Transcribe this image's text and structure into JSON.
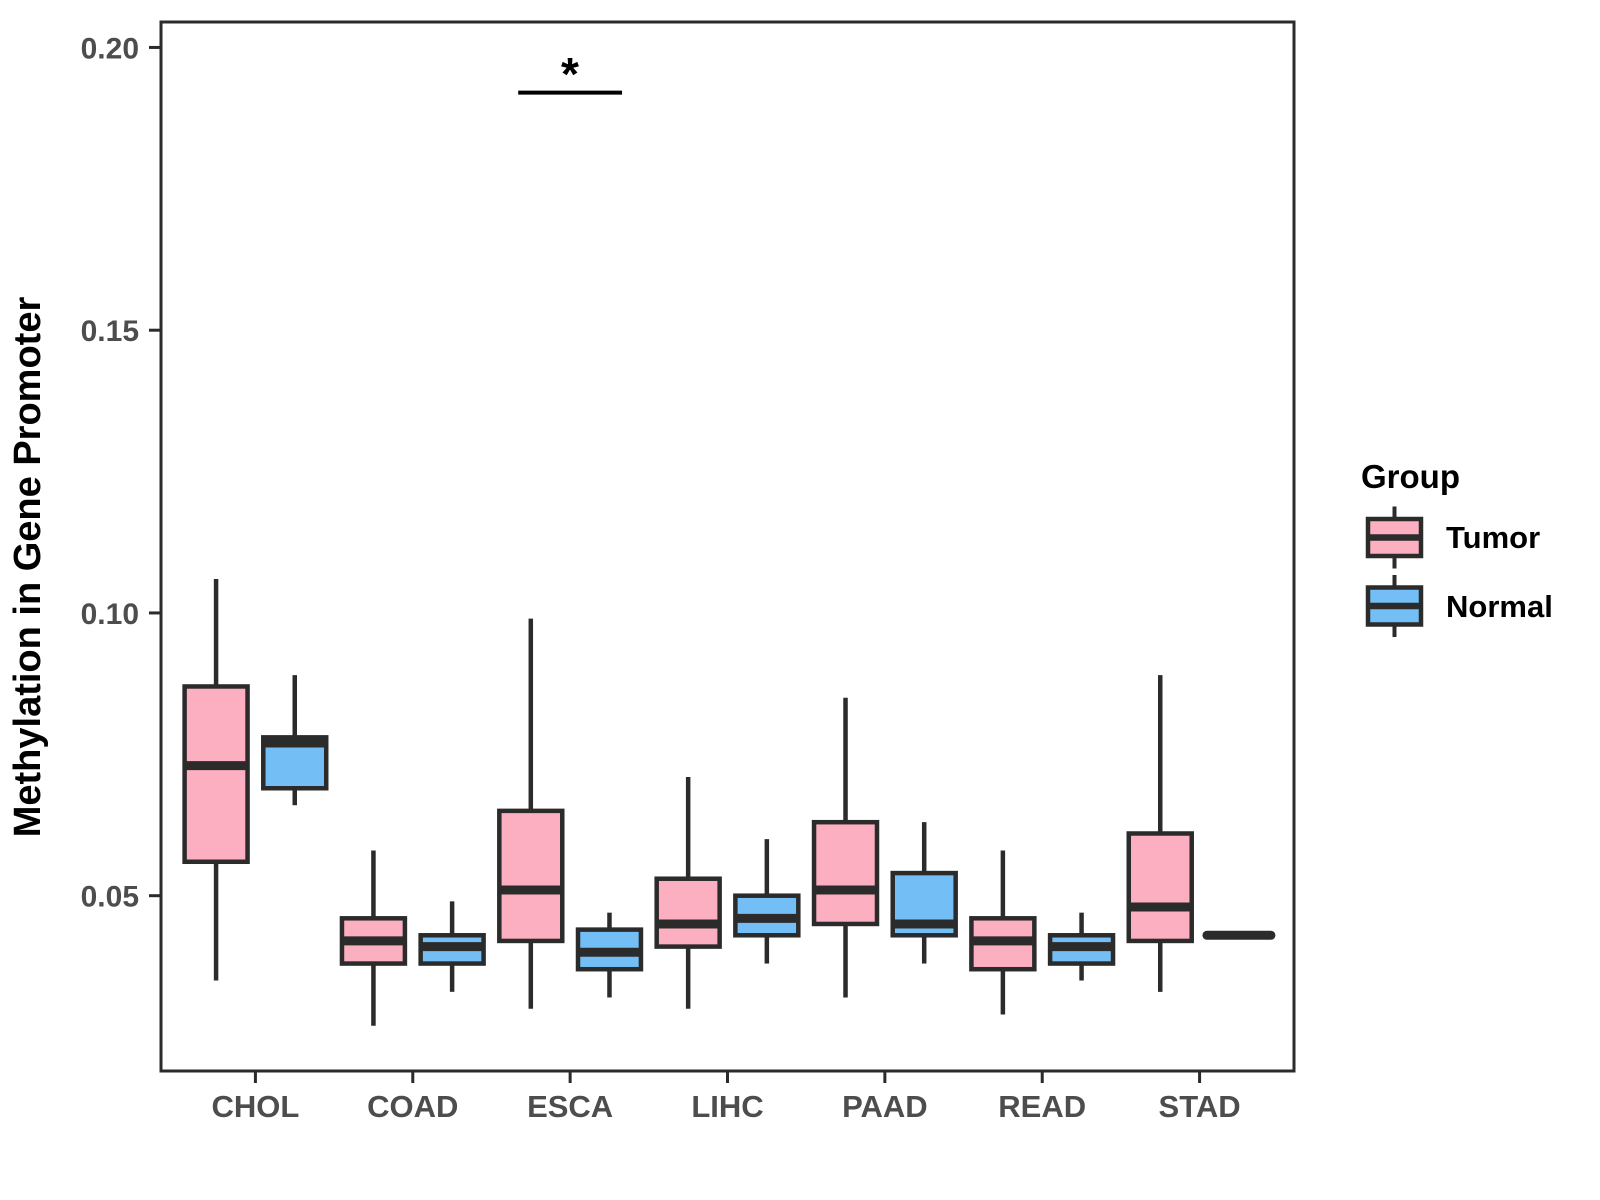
{
  "chart_data": {
    "type": "boxplot",
    "title": "",
    "xlabel": "",
    "ylabel": "Methylation in Gene Promoter",
    "categories": [
      "CHOL",
      "COAD",
      "ESCA",
      "LIHC",
      "PAAD",
      "READ",
      "STAD"
    ],
    "y_ticks": [
      {
        "value": 0.05,
        "label": "0.05"
      },
      {
        "value": 0.1,
        "label": "0.10"
      },
      {
        "value": 0.15,
        "label": "0.15"
      },
      {
        "value": 0.2,
        "label": "0.20"
      }
    ],
    "ylim": [
      0.019,
      0.2045
    ],
    "grid": false,
    "legend": {
      "title": "Group",
      "position": "right",
      "entries": [
        {
          "label": "Tumor",
          "color": "#FCAFC0"
        },
        {
          "label": "Normal",
          "color": "#73BFF5"
        }
      ]
    },
    "series": [
      {
        "name": "Tumor",
        "color": "#FCAFC0",
        "boxes": [
          {
            "category": "CHOL",
            "min": 0.035,
            "q1": 0.056,
            "median": 0.073,
            "q3": 0.087,
            "max": 0.106
          },
          {
            "category": "COAD",
            "min": 0.027,
            "q1": 0.038,
            "median": 0.042,
            "q3": 0.046,
            "max": 0.058
          },
          {
            "category": "ESCA",
            "min": 0.03,
            "q1": 0.042,
            "median": 0.051,
            "q3": 0.065,
            "max": 0.099
          },
          {
            "category": "LIHC",
            "min": 0.03,
            "q1": 0.041,
            "median": 0.045,
            "q3": 0.053,
            "max": 0.071
          },
          {
            "category": "PAAD",
            "min": 0.032,
            "q1": 0.045,
            "median": 0.051,
            "q3": 0.063,
            "max": 0.085
          },
          {
            "category": "READ",
            "min": 0.029,
            "q1": 0.037,
            "median": 0.042,
            "q3": 0.046,
            "max": 0.058
          },
          {
            "category": "STAD",
            "min": 0.033,
            "q1": 0.042,
            "median": 0.048,
            "q3": 0.061,
            "max": 0.089
          }
        ]
      },
      {
        "name": "Normal",
        "color": "#73BFF5",
        "boxes": [
          {
            "category": "CHOL",
            "min": 0.066,
            "q1": 0.069,
            "median": 0.077,
            "q3": 0.078,
            "max": 0.089
          },
          {
            "category": "COAD",
            "min": 0.033,
            "q1": 0.038,
            "median": 0.041,
            "q3": 0.043,
            "max": 0.049
          },
          {
            "category": "ESCA",
            "min": 0.032,
            "q1": 0.037,
            "median": 0.04,
            "q3": 0.044,
            "max": 0.047
          },
          {
            "category": "LIHC",
            "min": 0.038,
            "q1": 0.043,
            "median": 0.046,
            "q3": 0.05,
            "max": 0.06
          },
          {
            "category": "PAAD",
            "min": 0.038,
            "q1": 0.043,
            "median": 0.045,
            "q3": 0.054,
            "max": 0.063
          },
          {
            "category": "READ",
            "min": 0.035,
            "q1": 0.038,
            "median": 0.041,
            "q3": 0.043,
            "max": 0.047
          },
          {
            "category": "STAD",
            "min": 0.043,
            "q1": 0.043,
            "median": 0.043,
            "q3": 0.043,
            "max": 0.043
          }
        ]
      }
    ],
    "annotations": [
      {
        "type": "significance",
        "label": "*",
        "category": "ESCA",
        "y": 0.192
      }
    ],
    "styles": {
      "stroke": "#2B2B2B",
      "axis_text": "#4D4D4D",
      "title_text": "#000000",
      "background": "#FFFFFF"
    }
  }
}
